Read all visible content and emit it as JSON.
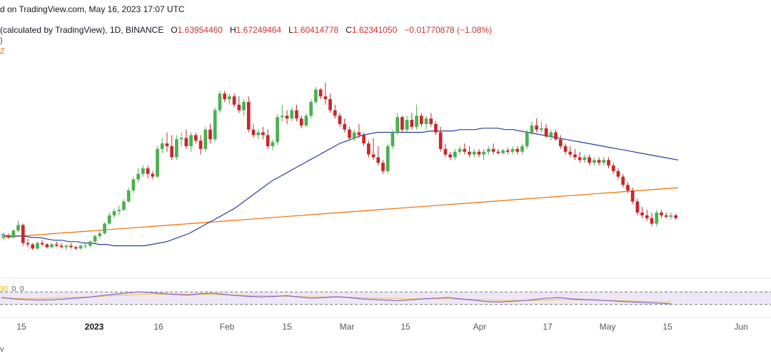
{
  "header": {
    "source_line": "d on TradingView.com, May 16, 2023 17:07 UTC",
    "symbol_line": "(calculated by TradingView), 1D, BINANCE",
    "ohlc": [
      {
        "label": "O",
        "value": "1.63954460"
      },
      {
        "label": "H",
        "value": "1.67249464"
      },
      {
        "label": "L",
        "value": "1.60414778"
      },
      {
        "label": "C",
        "value": "1.62341050"
      }
    ],
    "change": "−0.01770878 (−1.08%)"
  },
  "indicators": {
    "ma_fast_tag": ")",
    "ma_slow_tag": "Z"
  },
  "rsi_legend": {
    "value_a": "30",
    "value_b": "0",
    "value_c": "0"
  },
  "footer": {
    "text": "v"
  },
  "colors": {
    "up": "#26a69a",
    "up_fill": "#4caf50",
    "down": "#c62828",
    "ma_fast": "#2a3f9d",
    "ma_slow": "#ef6c00",
    "rsi": "#7e57c2",
    "rsi_ma": "#f2c94c",
    "rsi_band": "#ede7f6"
  },
  "chart_data": {
    "type": "candlestick",
    "x_axis_labels": [
      "15",
      "2023",
      "16",
      "Feb",
      "15",
      "Mar",
      "15",
      "Apr",
      "17",
      "May",
      "15",
      "Jun"
    ],
    "candles": [
      [
        0.84,
        0.88,
        0.82,
        0.85
      ],
      [
        0.85,
        0.87,
        0.83,
        0.84
      ],
      [
        0.84,
        0.9,
        0.83,
        0.89
      ],
      [
        0.89,
        0.96,
        0.88,
        0.93
      ],
      [
        0.93,
        0.94,
        0.78,
        0.8
      ],
      [
        0.8,
        0.83,
        0.77,
        0.79
      ],
      [
        0.79,
        0.8,
        0.75,
        0.76
      ],
      [
        0.76,
        0.81,
        0.75,
        0.8
      ],
      [
        0.8,
        0.82,
        0.78,
        0.79
      ],
      [
        0.79,
        0.8,
        0.76,
        0.77
      ],
      [
        0.77,
        0.8,
        0.76,
        0.79
      ],
      [
        0.79,
        0.81,
        0.77,
        0.78
      ],
      [
        0.78,
        0.8,
        0.76,
        0.77
      ],
      [
        0.77,
        0.79,
        0.75,
        0.78
      ],
      [
        0.78,
        0.8,
        0.76,
        0.77
      ],
      [
        0.77,
        0.78,
        0.75,
        0.76
      ],
      [
        0.76,
        0.79,
        0.75,
        0.78
      ],
      [
        0.78,
        0.8,
        0.76,
        0.78
      ],
      [
        0.78,
        0.82,
        0.77,
        0.81
      ],
      [
        0.81,
        0.86,
        0.8,
        0.85
      ],
      [
        0.85,
        0.89,
        0.83,
        0.87
      ],
      [
        0.87,
        0.95,
        0.86,
        0.94
      ],
      [
        0.94,
        1.02,
        0.93,
        1.0
      ],
      [
        1.0,
        1.05,
        0.98,
        1.03
      ],
      [
        1.03,
        1.07,
        1.0,
        1.04
      ],
      [
        1.04,
        1.12,
        1.03,
        1.1
      ],
      [
        1.1,
        1.2,
        1.09,
        1.18
      ],
      [
        1.18,
        1.28,
        1.16,
        1.26
      ],
      [
        1.26,
        1.34,
        1.24,
        1.3
      ],
      [
        1.3,
        1.36,
        1.28,
        1.34
      ],
      [
        1.34,
        1.36,
        1.27,
        1.3
      ],
      [
        1.3,
        1.32,
        1.26,
        1.28
      ],
      [
        1.28,
        1.5,
        1.27,
        1.48
      ],
      [
        1.48,
        1.56,
        1.45,
        1.52
      ],
      [
        1.52,
        1.6,
        1.46,
        1.5
      ],
      [
        1.5,
        1.58,
        1.4,
        1.42
      ],
      [
        1.42,
        1.58,
        1.4,
        1.55
      ],
      [
        1.55,
        1.6,
        1.5,
        1.56
      ],
      [
        1.56,
        1.62,
        1.48,
        1.5
      ],
      [
        1.5,
        1.6,
        1.46,
        1.58
      ],
      [
        1.58,
        1.6,
        1.52,
        1.54
      ],
      [
        1.54,
        1.58,
        1.44,
        1.48
      ],
      [
        1.48,
        1.64,
        1.46,
        1.62
      ],
      [
        1.62,
        1.66,
        1.52,
        1.55
      ],
      [
        1.55,
        1.78,
        1.53,
        1.76
      ],
      [
        1.76,
        1.9,
        1.74,
        1.88
      ],
      [
        1.88,
        1.9,
        1.82,
        1.84
      ],
      [
        1.84,
        1.88,
        1.8,
        1.86
      ],
      [
        1.86,
        1.88,
        1.78,
        1.8
      ],
      [
        1.8,
        1.86,
        1.74,
        1.76
      ],
      [
        1.76,
        1.84,
        1.72,
        1.82
      ],
      [
        1.82,
        1.86,
        1.6,
        1.62
      ],
      [
        1.62,
        1.66,
        1.56,
        1.58
      ],
      [
        1.58,
        1.62,
        1.55,
        1.6
      ],
      [
        1.6,
        1.64,
        1.55,
        1.58
      ],
      [
        1.58,
        1.62,
        1.48,
        1.5
      ],
      [
        1.5,
        1.55,
        1.47,
        1.53
      ],
      [
        1.53,
        1.73,
        1.51,
        1.71
      ],
      [
        1.71,
        1.8,
        1.68,
        1.72
      ],
      [
        1.72,
        1.76,
        1.66,
        1.7
      ],
      [
        1.7,
        1.78,
        1.68,
        1.76
      ],
      [
        1.76,
        1.8,
        1.68,
        1.7
      ],
      [
        1.7,
        1.72,
        1.63,
        1.65
      ],
      [
        1.65,
        1.74,
        1.64,
        1.72
      ],
      [
        1.72,
        1.84,
        1.7,
        1.82
      ],
      [
        1.82,
        1.93,
        1.8,
        1.91
      ],
      [
        1.91,
        1.92,
        1.84,
        1.86
      ],
      [
        1.86,
        1.96,
        1.8,
        1.84
      ],
      [
        1.84,
        1.88,
        1.74,
        1.76
      ],
      [
        1.76,
        1.8,
        1.7,
        1.72
      ],
      [
        1.72,
        1.74,
        1.64,
        1.66
      ],
      [
        1.66,
        1.7,
        1.6,
        1.62
      ],
      [
        1.62,
        1.64,
        1.54,
        1.56
      ],
      [
        1.56,
        1.62,
        1.54,
        1.6
      ],
      [
        1.6,
        1.66,
        1.56,
        1.58
      ],
      [
        1.58,
        1.6,
        1.5,
        1.52
      ],
      [
        1.52,
        1.54,
        1.42,
        1.44
      ],
      [
        1.44,
        1.56,
        1.4,
        1.42
      ],
      [
        1.42,
        1.5,
        1.36,
        1.38
      ],
      [
        1.38,
        1.4,
        1.3,
        1.32
      ],
      [
        1.32,
        1.52,
        1.3,
        1.5
      ],
      [
        1.5,
        1.62,
        1.48,
        1.6
      ],
      [
        1.6,
        1.74,
        1.58,
        1.71
      ],
      [
        1.71,
        1.72,
        1.6,
        1.62
      ],
      [
        1.62,
        1.72,
        1.6,
        1.69
      ],
      [
        1.69,
        1.74,
        1.62,
        1.64
      ],
      [
        1.64,
        1.8,
        1.62,
        1.72
      ],
      [
        1.72,
        1.74,
        1.64,
        1.66
      ],
      [
        1.66,
        1.72,
        1.62,
        1.7
      ],
      [
        1.7,
        1.74,
        1.64,
        1.66
      ],
      [
        1.66,
        1.68,
        1.58,
        1.6
      ],
      [
        1.6,
        1.64,
        1.46,
        1.48
      ],
      [
        1.48,
        1.52,
        1.42,
        1.44
      ],
      [
        1.44,
        1.46,
        1.4,
        1.42
      ],
      [
        1.42,
        1.48,
        1.4,
        1.46
      ],
      [
        1.46,
        1.5,
        1.44,
        1.48
      ],
      [
        1.48,
        1.52,
        1.44,
        1.46
      ],
      [
        1.46,
        1.5,
        1.42,
        1.44
      ],
      [
        1.44,
        1.48,
        1.42,
        1.46
      ],
      [
        1.46,
        1.48,
        1.42,
        1.44
      ],
      [
        1.44,
        1.48,
        1.4,
        1.46
      ],
      [
        1.46,
        1.5,
        1.44,
        1.48
      ],
      [
        1.48,
        1.52,
        1.44,
        1.46
      ],
      [
        1.46,
        1.48,
        1.44,
        1.45
      ],
      [
        1.45,
        1.48,
        1.44,
        1.47
      ],
      [
        1.47,
        1.49,
        1.44,
        1.46
      ],
      [
        1.46,
        1.5,
        1.44,
        1.48
      ],
      [
        1.48,
        1.5,
        1.44,
        1.46
      ],
      [
        1.46,
        1.52,
        1.44,
        1.5
      ],
      [
        1.5,
        1.62,
        1.48,
        1.6
      ],
      [
        1.6,
        1.68,
        1.58,
        1.65
      ],
      [
        1.65,
        1.7,
        1.6,
        1.62
      ],
      [
        1.62,
        1.68,
        1.6,
        1.63
      ],
      [
        1.63,
        1.66,
        1.56,
        1.57
      ],
      [
        1.57,
        1.62,
        1.54,
        1.6
      ],
      [
        1.6,
        1.62,
        1.54,
        1.55
      ],
      [
        1.55,
        1.58,
        1.48,
        1.5
      ],
      [
        1.5,
        1.52,
        1.44,
        1.46
      ],
      [
        1.46,
        1.5,
        1.42,
        1.44
      ],
      [
        1.44,
        1.48,
        1.4,
        1.42
      ],
      [
        1.42,
        1.46,
        1.38,
        1.4
      ],
      [
        1.4,
        1.44,
        1.38,
        1.42
      ],
      [
        1.42,
        1.44,
        1.36,
        1.38
      ],
      [
        1.38,
        1.42,
        1.36,
        1.4
      ],
      [
        1.4,
        1.42,
        1.36,
        1.38
      ],
      [
        1.38,
        1.42,
        1.36,
        1.4
      ],
      [
        1.4,
        1.42,
        1.34,
        1.36
      ],
      [
        1.36,
        1.38,
        1.3,
        1.32
      ],
      [
        1.32,
        1.34,
        1.26,
        1.28
      ],
      [
        1.28,
        1.3,
        1.2,
        1.22
      ],
      [
        1.22,
        1.24,
        1.16,
        1.18
      ],
      [
        1.18,
        1.2,
        1.08,
        1.1
      ],
      [
        1.1,
        1.12,
        1.0,
        1.02
      ],
      [
        1.02,
        1.06,
        0.98,
        1.0
      ],
      [
        1.0,
        1.04,
        0.96,
        0.98
      ],
      [
        0.98,
        1.02,
        0.92,
        0.94
      ],
      [
        0.94,
        1.04,
        0.92,
        1.02
      ],
      [
        1.02,
        1.04,
        0.98,
        1.0
      ],
      [
        1.0,
        1.02,
        0.98,
        0.99
      ],
      [
        0.99,
        1.02,
        0.97,
        1.0
      ],
      [
        1.0,
        1.01,
        0.97,
        0.98
      ]
    ],
    "ma_fast": [
      0.86,
      0.85,
      0.85,
      0.85,
      0.84,
      0.84,
      0.83,
      0.82,
      0.82,
      0.81,
      0.81,
      0.8,
      0.8,
      0.79,
      0.79,
      0.78,
      0.78,
      0.78,
      0.78,
      0.78,
      0.79,
      0.8,
      0.81,
      0.83,
      0.85,
      0.87,
      0.9,
      0.93,
      0.96,
      0.99,
      1.02,
      1.05,
      1.09,
      1.13,
      1.17,
      1.21,
      1.25,
      1.28,
      1.31,
      1.34,
      1.37,
      1.4,
      1.43,
      1.46,
      1.49,
      1.52,
      1.54,
      1.56,
      1.58,
      1.59,
      1.6,
      1.6,
      1.6,
      1.6,
      1.6,
      1.6,
      1.6,
      1.61,
      1.61,
      1.61,
      1.61,
      1.62,
      1.62,
      1.62,
      1.63,
      1.63,
      1.63,
      1.62,
      1.62,
      1.61,
      1.6,
      1.59,
      1.58,
      1.57,
      1.56,
      1.55,
      1.54,
      1.53,
      1.52,
      1.51,
      1.5,
      1.49,
      1.48,
      1.47,
      1.46,
      1.45,
      1.44,
      1.43,
      1.42,
      1.41,
      1.4
    ],
    "ma_slow": [
      0.84,
      0.85,
      0.86,
      0.87,
      0.88,
      0.89,
      0.9,
      0.91,
      0.92,
      0.93,
      0.94,
      0.95,
      0.96,
      0.97,
      0.98,
      0.99,
      1.0,
      1.01,
      1.02,
      1.03,
      1.04,
      1.05,
      1.06,
      1.07,
      1.08,
      1.09,
      1.1,
      1.11,
      1.12,
      1.13,
      1.14,
      1.15,
      1.16,
      1.17,
      1.18,
      1.19,
      1.2
    ],
    "rsi": [
      52,
      48,
      46,
      44,
      45,
      47,
      50,
      53,
      58,
      62,
      66,
      70,
      68,
      65,
      62,
      60,
      64,
      66,
      62,
      58,
      56,
      54,
      56,
      58,
      54,
      50,
      52,
      55,
      52,
      48,
      46,
      44,
      42,
      45,
      48,
      50,
      52,
      48,
      44,
      40,
      38,
      40,
      42,
      46,
      50,
      52,
      48,
      46,
      44,
      42,
      40,
      38,
      36,
      34,
      32
    ],
    "rsi_ma": [
      50,
      50,
      50,
      50,
      51,
      52,
      53,
      54,
      56,
      58,
      60,
      62,
      63,
      63,
      63,
      62,
      62,
      62,
      61,
      60,
      59,
      58,
      57,
      56,
      55,
      54,
      54,
      54,
      53,
      52,
      51,
      50,
      49,
      48,
      48,
      48,
      48,
      47,
      46,
      45,
      44,
      43,
      43,
      43,
      44,
      45,
      45,
      45,
      44,
      43,
      42,
      41,
      40,
      39,
      38
    ],
    "price_range": [
      0.7,
      2.0
    ],
    "rsi_range": [
      0,
      100
    ],
    "rsi_band": [
      30,
      70
    ]
  }
}
